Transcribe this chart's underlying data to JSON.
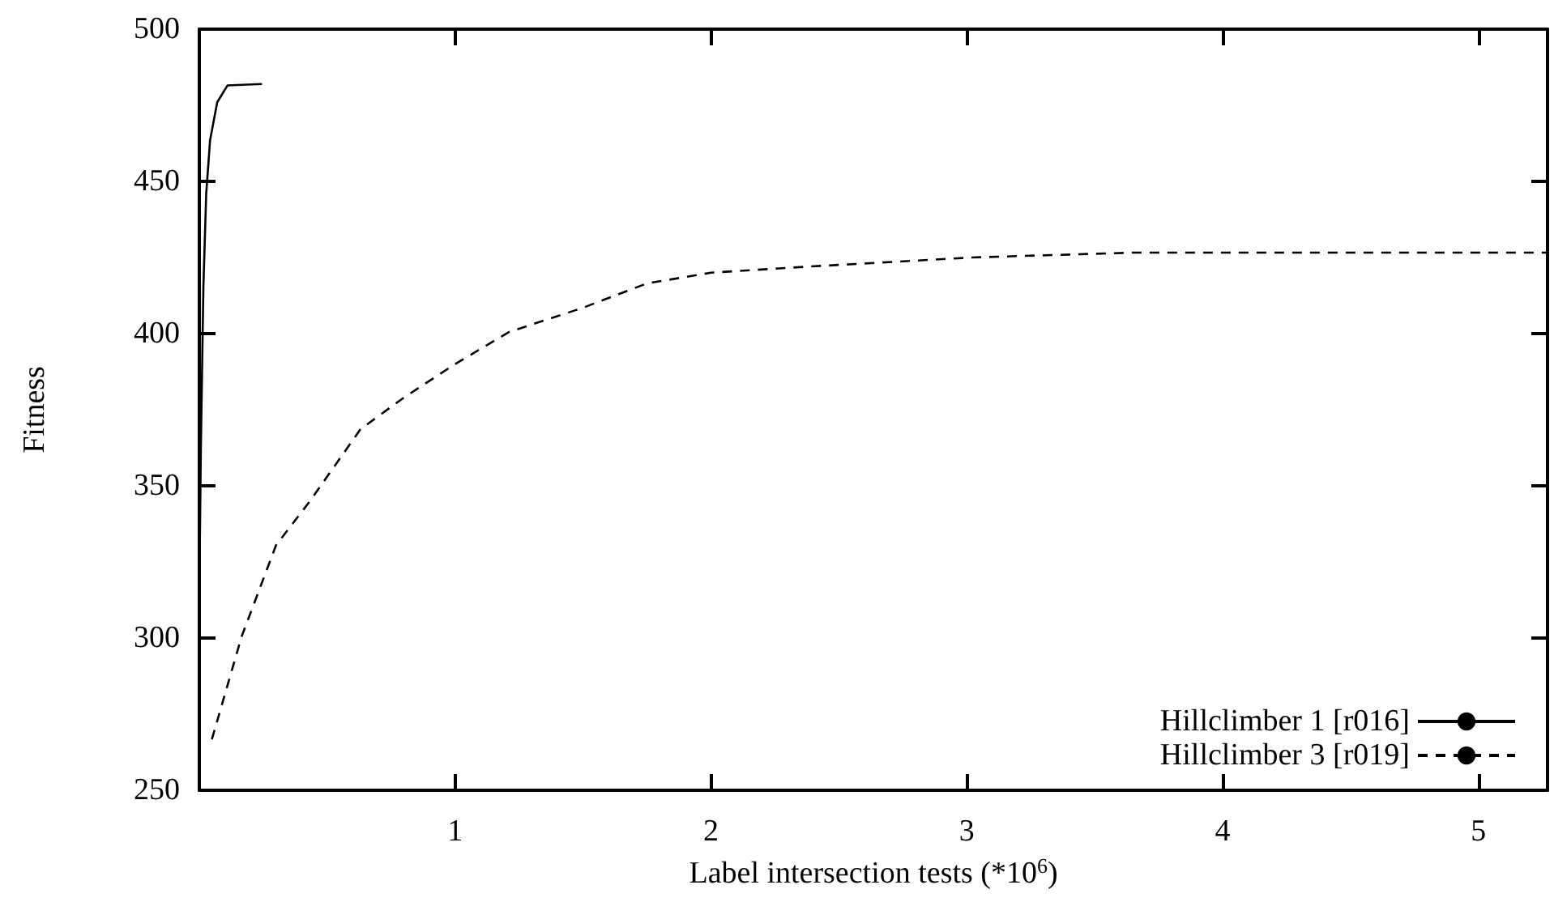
{
  "chart_data": {
    "type": "line",
    "xlabel": "Label intersection tests (*10$^{6}$)",
    "ylabel": "Fitness",
    "xlim": [
      0,
      5.27
    ],
    "xticks": [
      1,
      2,
      3,
      4,
      5
    ],
    "ylim": [
      250,
      500
    ],
    "yticks": [
      250,
      300,
      350,
      400,
      450,
      500
    ],
    "grid": false,
    "legend": "bottom right",
    "marker": "none",
    "series": [
      {
        "name": "Hillclimber 1 [r016]",
        "color": "#000000",
        "line_style": "solid",
        "x": [
          0.002,
          0.006,
          0.016,
          0.027,
          0.042,
          0.07,
          0.11,
          0.245
        ],
        "values": [
          330,
          362,
          415.6,
          446,
          463.5,
          476,
          481.5,
          482
        ]
      },
      {
        "name": "Hillclimber 3 [r019]",
        "color": "#000000",
        "line_style": "dashed",
        "x": [
          0.049,
          0.165,
          0.3,
          0.43,
          0.63,
          0.8,
          1.0,
          1.21,
          1.5,
          1.75,
          2.0,
          2.38,
          3.02,
          3.65,
          5.27
        ],
        "values": [
          266.7,
          300.4,
          330.5,
          344.7,
          368.6,
          379,
          390,
          400.5,
          408.5,
          416.5,
          420,
          422,
          425,
          426.6,
          426.6
        ]
      }
    ]
  }
}
